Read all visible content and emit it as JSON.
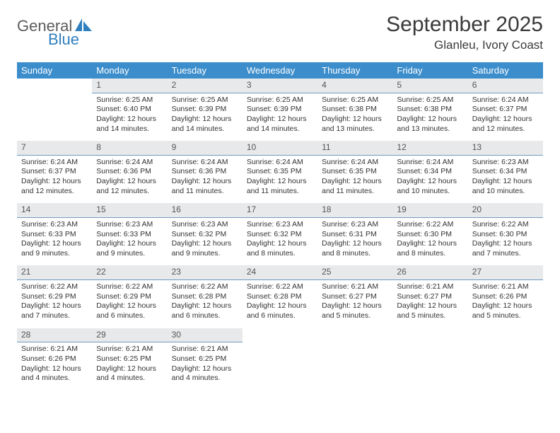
{
  "logo": {
    "line1": "General",
    "line2": "Blue"
  },
  "header": {
    "title": "September 2025",
    "location": "Glanleu, Ivory Coast"
  },
  "style": {
    "accent": "#3b8dcb",
    "daynum_bg": "#e8e9ea",
    "daynum_border": "#6f9bc0",
    "text_color": "#333333",
    "body_fontsize": 10.5,
    "header_fontsize": 13,
    "title_fontsize": 30,
    "location_fontsize": 17
  },
  "weekdays": [
    "Sunday",
    "Monday",
    "Tuesday",
    "Wednesday",
    "Thursday",
    "Friday",
    "Saturday"
  ],
  "weeks": [
    [
      null,
      {
        "n": "1",
        "sr": "Sunrise: 6:25 AM",
        "ss": "Sunset: 6:40 PM",
        "dl": "Daylight: 12 hours and 14 minutes."
      },
      {
        "n": "2",
        "sr": "Sunrise: 6:25 AM",
        "ss": "Sunset: 6:39 PM",
        "dl": "Daylight: 12 hours and 14 minutes."
      },
      {
        "n": "3",
        "sr": "Sunrise: 6:25 AM",
        "ss": "Sunset: 6:39 PM",
        "dl": "Daylight: 12 hours and 14 minutes."
      },
      {
        "n": "4",
        "sr": "Sunrise: 6:25 AM",
        "ss": "Sunset: 6:38 PM",
        "dl": "Daylight: 12 hours and 13 minutes."
      },
      {
        "n": "5",
        "sr": "Sunrise: 6:25 AM",
        "ss": "Sunset: 6:38 PM",
        "dl": "Daylight: 12 hours and 13 minutes."
      },
      {
        "n": "6",
        "sr": "Sunrise: 6:24 AM",
        "ss": "Sunset: 6:37 PM",
        "dl": "Daylight: 12 hours and 12 minutes."
      }
    ],
    [
      {
        "n": "7",
        "sr": "Sunrise: 6:24 AM",
        "ss": "Sunset: 6:37 PM",
        "dl": "Daylight: 12 hours and 12 minutes."
      },
      {
        "n": "8",
        "sr": "Sunrise: 6:24 AM",
        "ss": "Sunset: 6:36 PM",
        "dl": "Daylight: 12 hours and 12 minutes."
      },
      {
        "n": "9",
        "sr": "Sunrise: 6:24 AM",
        "ss": "Sunset: 6:36 PM",
        "dl": "Daylight: 12 hours and 11 minutes."
      },
      {
        "n": "10",
        "sr": "Sunrise: 6:24 AM",
        "ss": "Sunset: 6:35 PM",
        "dl": "Daylight: 12 hours and 11 minutes."
      },
      {
        "n": "11",
        "sr": "Sunrise: 6:24 AM",
        "ss": "Sunset: 6:35 PM",
        "dl": "Daylight: 12 hours and 11 minutes."
      },
      {
        "n": "12",
        "sr": "Sunrise: 6:24 AM",
        "ss": "Sunset: 6:34 PM",
        "dl": "Daylight: 12 hours and 10 minutes."
      },
      {
        "n": "13",
        "sr": "Sunrise: 6:23 AM",
        "ss": "Sunset: 6:34 PM",
        "dl": "Daylight: 12 hours and 10 minutes."
      }
    ],
    [
      {
        "n": "14",
        "sr": "Sunrise: 6:23 AM",
        "ss": "Sunset: 6:33 PM",
        "dl": "Daylight: 12 hours and 9 minutes."
      },
      {
        "n": "15",
        "sr": "Sunrise: 6:23 AM",
        "ss": "Sunset: 6:33 PM",
        "dl": "Daylight: 12 hours and 9 minutes."
      },
      {
        "n": "16",
        "sr": "Sunrise: 6:23 AM",
        "ss": "Sunset: 6:32 PM",
        "dl": "Daylight: 12 hours and 9 minutes."
      },
      {
        "n": "17",
        "sr": "Sunrise: 6:23 AM",
        "ss": "Sunset: 6:32 PM",
        "dl": "Daylight: 12 hours and 8 minutes."
      },
      {
        "n": "18",
        "sr": "Sunrise: 6:23 AM",
        "ss": "Sunset: 6:31 PM",
        "dl": "Daylight: 12 hours and 8 minutes."
      },
      {
        "n": "19",
        "sr": "Sunrise: 6:22 AM",
        "ss": "Sunset: 6:30 PM",
        "dl": "Daylight: 12 hours and 8 minutes."
      },
      {
        "n": "20",
        "sr": "Sunrise: 6:22 AM",
        "ss": "Sunset: 6:30 PM",
        "dl": "Daylight: 12 hours and 7 minutes."
      }
    ],
    [
      {
        "n": "21",
        "sr": "Sunrise: 6:22 AM",
        "ss": "Sunset: 6:29 PM",
        "dl": "Daylight: 12 hours and 7 minutes."
      },
      {
        "n": "22",
        "sr": "Sunrise: 6:22 AM",
        "ss": "Sunset: 6:29 PM",
        "dl": "Daylight: 12 hours and 6 minutes."
      },
      {
        "n": "23",
        "sr": "Sunrise: 6:22 AM",
        "ss": "Sunset: 6:28 PM",
        "dl": "Daylight: 12 hours and 6 minutes."
      },
      {
        "n": "24",
        "sr": "Sunrise: 6:22 AM",
        "ss": "Sunset: 6:28 PM",
        "dl": "Daylight: 12 hours and 6 minutes."
      },
      {
        "n": "25",
        "sr": "Sunrise: 6:21 AM",
        "ss": "Sunset: 6:27 PM",
        "dl": "Daylight: 12 hours and 5 minutes."
      },
      {
        "n": "26",
        "sr": "Sunrise: 6:21 AM",
        "ss": "Sunset: 6:27 PM",
        "dl": "Daylight: 12 hours and 5 minutes."
      },
      {
        "n": "27",
        "sr": "Sunrise: 6:21 AM",
        "ss": "Sunset: 6:26 PM",
        "dl": "Daylight: 12 hours and 5 minutes."
      }
    ],
    [
      {
        "n": "28",
        "sr": "Sunrise: 6:21 AM",
        "ss": "Sunset: 6:26 PM",
        "dl": "Daylight: 12 hours and 4 minutes."
      },
      {
        "n": "29",
        "sr": "Sunrise: 6:21 AM",
        "ss": "Sunset: 6:25 PM",
        "dl": "Daylight: 12 hours and 4 minutes."
      },
      {
        "n": "30",
        "sr": "Sunrise: 6:21 AM",
        "ss": "Sunset: 6:25 PM",
        "dl": "Daylight: 12 hours and 4 minutes."
      },
      null,
      null,
      null,
      null
    ]
  ]
}
